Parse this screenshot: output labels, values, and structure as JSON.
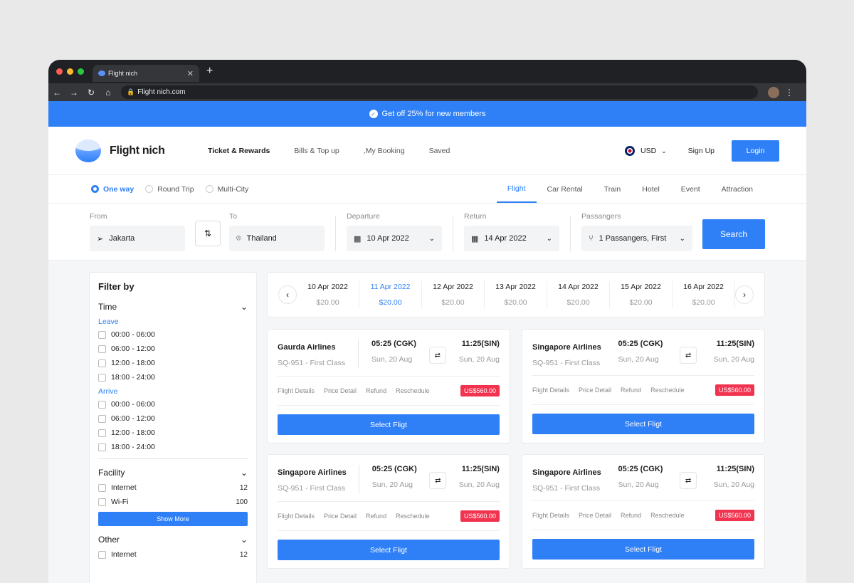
{
  "browser": {
    "tab_title": "Flight nich",
    "url": "Flight nich.com",
    "dot_colors": [
      "#ff5f57",
      "#febc2e",
      "#28c840"
    ]
  },
  "promo": {
    "text": "Get off 25% for new members"
  },
  "header": {
    "brand": "Flight nich",
    "menu": [
      "Ticket & Rewards",
      "Bills & Top up",
      ",My Booking",
      "Saved"
    ],
    "currency": "USD",
    "signup": "Sign Up",
    "login": "Login"
  },
  "trip_options": {
    "types": [
      "One way",
      "Round Trip",
      "Multi-City"
    ],
    "categories": [
      "Flight",
      "Car Rental",
      "Train",
      "Hotel",
      "Event",
      "Attraction"
    ]
  },
  "search_form": {
    "from_label": "From",
    "from_value": "Jakarta",
    "to_label": "To",
    "to_value": "Thailand",
    "departure_label": "Departure",
    "departure_value": "10 Apr 2022",
    "return_label": "Return",
    "return_value": "14 Apr 2022",
    "passengers_label": "Passangers",
    "passengers_value": "1 Passangers, First",
    "search_button": "Search"
  },
  "filter": {
    "title": "Filter by",
    "time_title": "Time",
    "leave_label": "Leave",
    "leave_slots": [
      "00:00 - 06:00",
      "06:00 - 12:00",
      "12:00 - 18:00",
      "18:00 - 24:00"
    ],
    "arrive_label": "Arrive",
    "arrive_slots": [
      "00:00 - 06:00",
      "06:00 - 12:00",
      "12:00 - 18:00",
      "18:00 - 24:00"
    ],
    "facility_title": "Facility",
    "facilities": [
      {
        "name": "Internet",
        "count": "12"
      },
      {
        "name": "Wi-Fi",
        "count": "100"
      }
    ],
    "show_more": "Show More",
    "other_title": "Other",
    "others": [
      {
        "name": "Internet",
        "count": "12"
      }
    ]
  },
  "date_strip": [
    {
      "date": "10 Apr 2022",
      "price": "$20.00"
    },
    {
      "date": "11 Apr 2022",
      "price": "$20.00"
    },
    {
      "date": "12 Apr 2022",
      "price": "$20.00"
    },
    {
      "date": "13 Apr 2022",
      "price": "$20.00"
    },
    {
      "date": "14 Apr 2022",
      "price": "$20.00"
    },
    {
      "date": "15 Apr 2022",
      "price": "$20.00"
    },
    {
      "date": "16 Apr 2022",
      "price": "$20.00"
    }
  ],
  "flights": [
    {
      "airline": "Gaurda Airlines",
      "code": "SQ-951 - First Class",
      "depart_time": "05:25 (CGK)",
      "depart_date": "Sun, 20 Aug",
      "arrive_time": "11:25(SIN)",
      "arrive_date": "Sun, 20 Aug",
      "price": "US$560.00"
    },
    {
      "airline": "Singapore Airlines",
      "code": "SQ-951 - First Class",
      "depart_time": "05:25 (CGK)",
      "depart_date": "Sun, 20 Aug",
      "arrive_time": "11:25(SIN)",
      "arrive_date": "Sun, 20 Aug",
      "price": "US$560.00"
    },
    {
      "airline": "Singapore Airlines",
      "code": "SQ-951 - First Class",
      "depart_time": "05:25 (CGK)",
      "depart_date": "Sun, 20 Aug",
      "arrive_time": "11:25(SIN)",
      "arrive_date": "Sun, 20 Aug",
      "price": "US$560.00"
    },
    {
      "airline": "Singapore Airlines",
      "code": "SQ-951 - First Class",
      "depart_time": "05:25 (CGK)",
      "depart_date": "Sun, 20 Aug",
      "arrive_time": "11:25(SIN)",
      "arrive_date": "Sun, 20 Aug",
      "price": "US$560.00"
    }
  ],
  "flight_links": [
    "Flight Details",
    "Price Detail",
    "Refund",
    "Reschedule"
  ],
  "select_label": "Select Fligt",
  "colors": {
    "accent": "#2f80f7",
    "price_badge": "#f2334f"
  }
}
